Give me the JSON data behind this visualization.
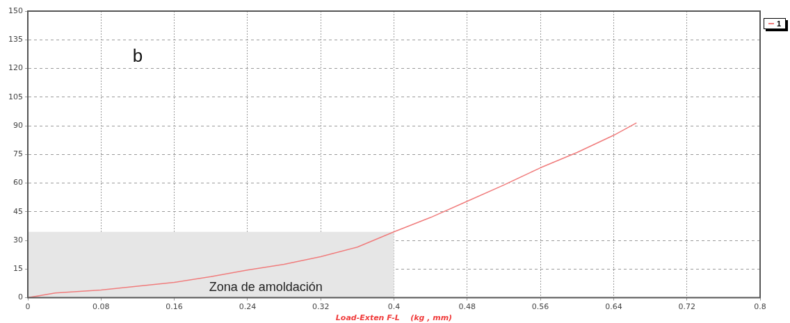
{
  "chart_data": {
    "type": "line",
    "xlabel": "Load-Exten F-L    (kg , mm)",
    "x": [
      0,
      0.03,
      0.08,
      0.12,
      0.16,
      0.2,
      0.24,
      0.28,
      0.32,
      0.36,
      0.4,
      0.44,
      0.48,
      0.52,
      0.56,
      0.6,
      0.64,
      0.665
    ],
    "series": [
      {
        "name": "1",
        "color": "#f07c7c",
        "values": [
          0,
          2.5,
          4,
          6,
          8,
          11,
          14.5,
          17.5,
          21.5,
          26.5,
          34.5,
          42,
          50.5,
          59,
          68,
          76,
          85,
          91.5
        ]
      }
    ],
    "xlim": [
      0,
      0.8
    ],
    "xticks": [
      0,
      0.08,
      0.16,
      0.24,
      0.32,
      0.4,
      0.48,
      0.56,
      0.64,
      0.72,
      0.8
    ],
    "ylim": [
      0,
      150
    ],
    "yticks": [
      0,
      15,
      30,
      45,
      60,
      75,
      90,
      105,
      120,
      135,
      150
    ],
    "bands": [
      {
        "axis": "x",
        "from": 0,
        "to": 0.4,
        "label": "Zona de amoldación",
        "color": "#e6e6e6"
      }
    ],
    "annotations": [
      "b"
    ],
    "grid": true,
    "legend": "top right",
    "marker": "none",
    "line_style": "solid"
  }
}
